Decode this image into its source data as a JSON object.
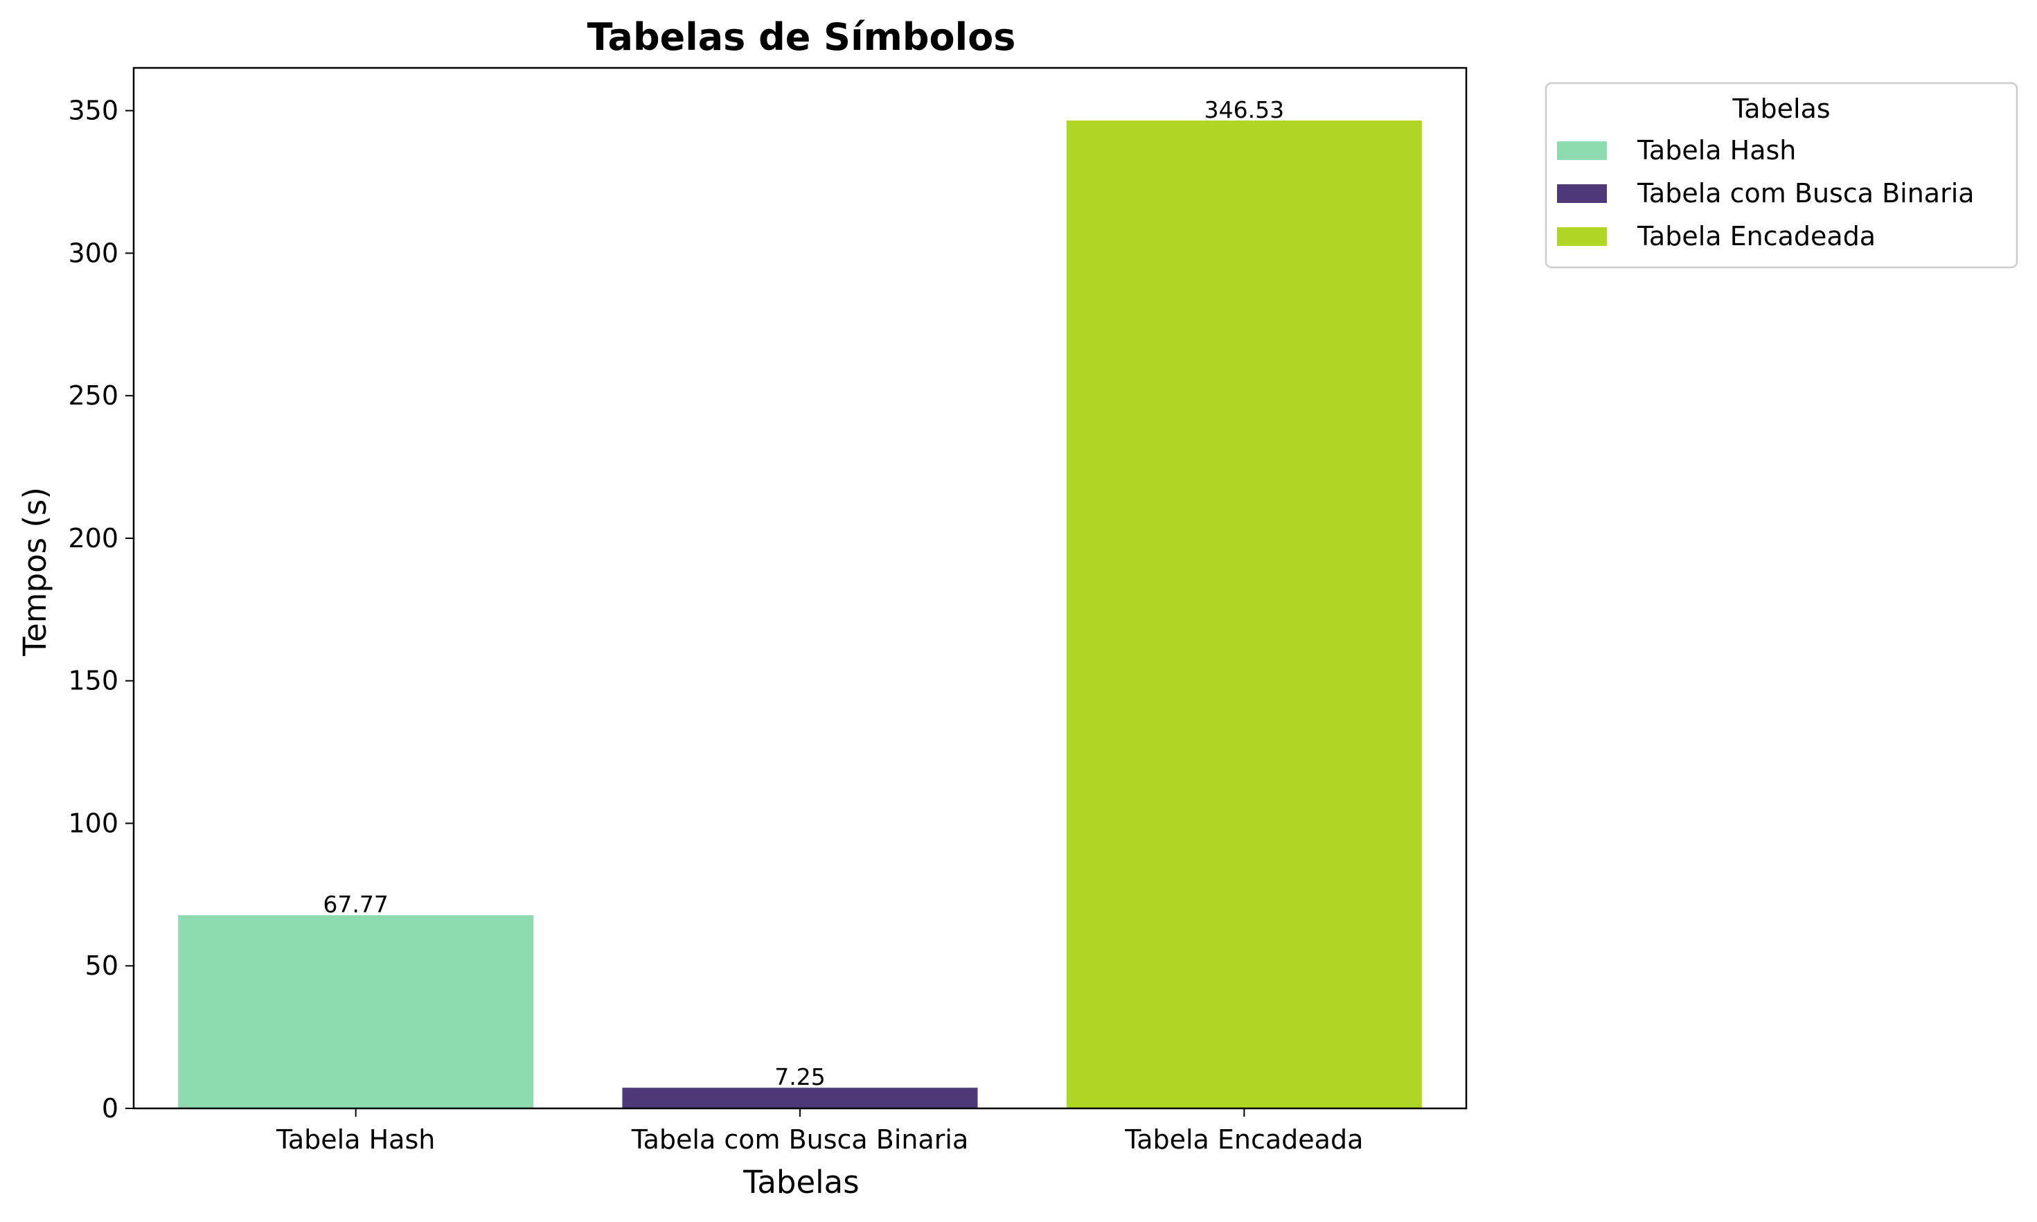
{
  "chart_data": {
    "type": "bar",
    "title": "Tabelas de Símbolos",
    "xlabel": "Tabelas",
    "ylabel": "Tempos (s)",
    "categories": [
      "Tabela Hash",
      "Tabela com Busca Binaria",
      "Tabela Encadeada"
    ],
    "values": [
      67.77,
      7.25,
      346.53
    ],
    "value_labels": [
      "67.77",
      "7.25",
      "346.53"
    ],
    "colors": [
      "#8fdbb0",
      "#4e3a7a",
      "#b1d726"
    ],
    "ylim": [
      0,
      365
    ],
    "yticks": [
      0,
      50,
      100,
      150,
      200,
      250,
      300,
      350
    ],
    "grid": false,
    "legend": {
      "title": "Tabelas",
      "placement": "outside-upper-right",
      "entries": [
        "Tabela Hash",
        "Tabela com Busca Binaria",
        "Tabela Encadeada"
      ]
    }
  }
}
